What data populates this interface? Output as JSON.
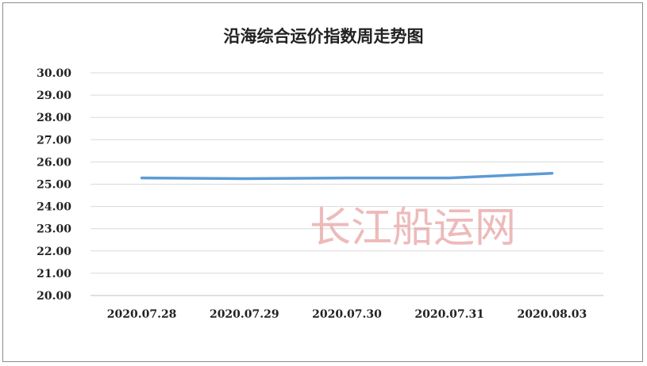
{
  "chart_data": {
    "type": "line",
    "title": "沿海综合运价指数周走势图",
    "categories": [
      "2020.07.28",
      "2020.07.29",
      "2020.07.30",
      "2020.07.31",
      "2020.08.03"
    ],
    "series": [
      {
        "values": [
          25.28,
          25.25,
          25.28,
          25.28,
          25.49
        ],
        "color": "#5b9bd5"
      }
    ],
    "y_ticks": [
      "20.00",
      "21.00",
      "22.00",
      "23.00",
      "24.00",
      "25.00",
      "26.00",
      "27.00",
      "28.00",
      "29.00",
      "30.00"
    ],
    "ylim": [
      20,
      30
    ],
    "xlabel": "",
    "ylabel": "",
    "grid": true,
    "legend": "none"
  },
  "watermark": "长江船运网"
}
